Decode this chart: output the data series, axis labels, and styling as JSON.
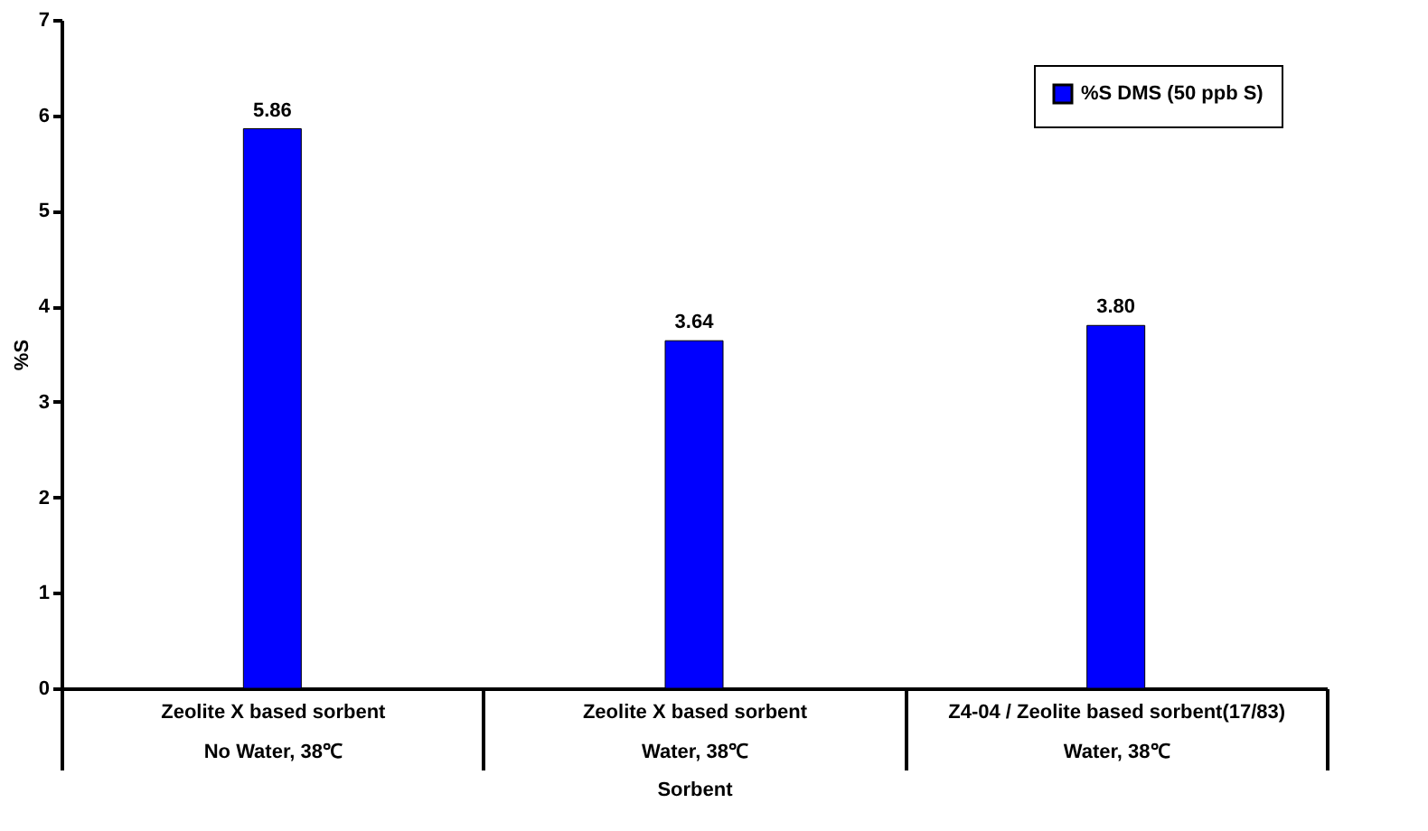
{
  "chart_data": {
    "type": "bar",
    "xlabel": "Sorbent",
    "ylabel": "%S",
    "categories": [
      "Zeolite X based sorbent\nNo Water, 38℃",
      "Zeolite X based sorbent\nWater, 38℃",
      "Z4-04 / Zeolite based sorbent(17/83)\nWater, 38℃"
    ],
    "series": [
      {
        "name": "%S DMS (50 ppb S)",
        "color": "#0000ff",
        "values": [
          5.86,
          3.64,
          3.8
        ],
        "value_labels": [
          "5.86",
          "3.64",
          "3.80"
        ]
      }
    ],
    "ylim": [
      0,
      7
    ],
    "yticks": [
      0,
      1,
      2,
      3,
      4,
      5,
      6,
      7
    ],
    "grid": false,
    "legend": "top right"
  }
}
